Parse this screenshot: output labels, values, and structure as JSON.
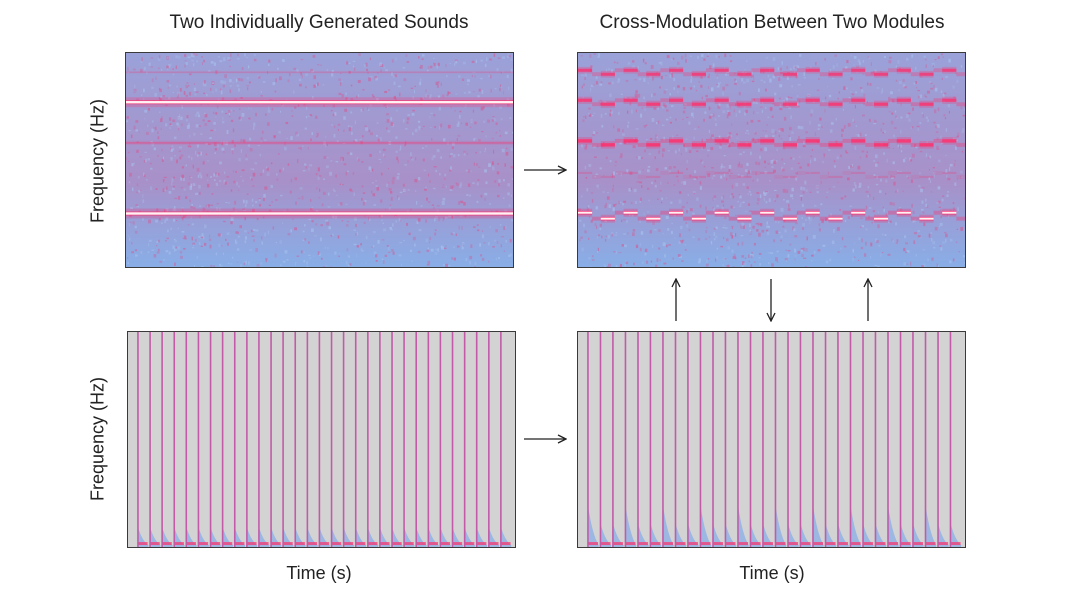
{
  "titles": {
    "left": "Two Individually Generated Sounds",
    "right": "Cross-Modulation Between Two Modules"
  },
  "axes": {
    "y_top": "Frequency (Hz)",
    "y_bottom": "Frequency (Hz)",
    "x_left": "Time (s)",
    "x_right": "Time (s)"
  },
  "colors": {
    "spectrogram_background": "#8fb0e6",
    "spectrogram_noise": "#d85590",
    "harmonic_line": "#ff2d6a",
    "harmonic_core": "#fff2f5",
    "impulse_background": "#d3d3d3",
    "impulse_line": "#c25aa8",
    "arrow": "#222222"
  },
  "spectrograms": {
    "top_left_harmonic_levels": [
      0.09,
      0.23,
      0.42,
      0.75
    ],
    "top_left_harmonic_strength": [
      0.3,
      1.0,
      0.45,
      1.0
    ],
    "top_right_harmonic_levels": [
      0.09,
      0.23,
      0.42,
      0.57,
      0.76
    ],
    "top_right_harmonic_strength": [
      0.85,
      0.9,
      0.95,
      0.3,
      1.0
    ],
    "top_right_modulation_steps": 17,
    "impulse_count_left": 31,
    "impulse_count_right": 30
  }
}
